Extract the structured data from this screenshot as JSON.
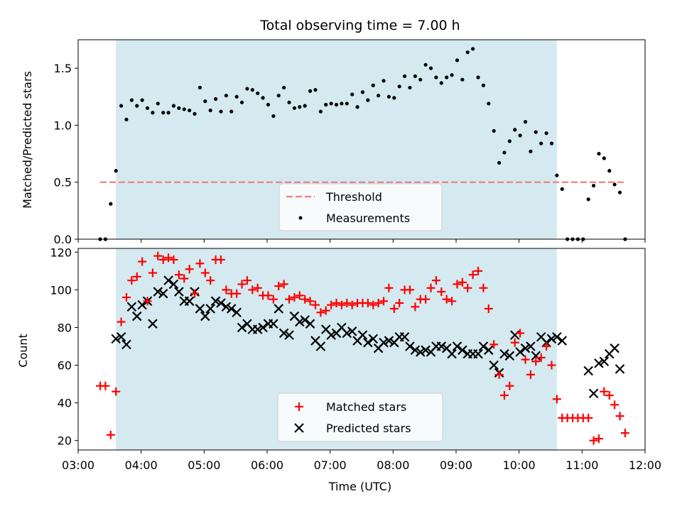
{
  "chart_data": [
    {
      "type": "scatter",
      "title": "Total observing time = 7.00 h",
      "ylabel": "Matched/Predicted stars",
      "xlim": [
        "03:00",
        "12:00"
      ],
      "ylim": [
        0,
        1.75
      ],
      "yticks": [
        "0.0",
        "0.5",
        "1.0",
        "1.5"
      ],
      "observing_window": [
        "03:36",
        "10:36"
      ],
      "threshold": 0.5,
      "legend": [
        "Threshold",
        "Measurements"
      ],
      "legend_loc": "lower center",
      "colors": {
        "threshold": "#f08080",
        "measurements": "#000000",
        "window": "#d4eaf0"
      },
      "series": [
        {
          "name": "Measurements",
          "x": [
            "03:21",
            "03:26",
            "03:31",
            "03:36",
            "03:41",
            "03:46",
            "03:51",
            "03:56",
            "04:01",
            "04:06",
            "04:11",
            "04:16",
            "04:21",
            "04:26",
            "04:31",
            "04:36",
            "04:41",
            "04:46",
            "04:51",
            "04:56",
            "05:01",
            "05:06",
            "05:11",
            "05:16",
            "05:21",
            "05:26",
            "05:31",
            "05:36",
            "05:41",
            "05:46",
            "05:51",
            "05:56",
            "06:01",
            "06:06",
            "06:11",
            "06:16",
            "06:21",
            "06:26",
            "06:31",
            "06:36",
            "06:41",
            "06:46",
            "06:51",
            "06:56",
            "07:01",
            "07:06",
            "07:11",
            "07:16",
            "07:21",
            "07:26",
            "07:31",
            "07:36",
            "07:41",
            "07:46",
            "07:51",
            "07:56",
            "08:01",
            "08:06",
            "08:11",
            "08:16",
            "08:21",
            "08:26",
            "08:31",
            "08:36",
            "08:41",
            "08:46",
            "08:51",
            "08:56",
            "09:01",
            "09:06",
            "09:11",
            "09:16",
            "09:21",
            "09:26",
            "09:31",
            "09:36",
            "09:41",
            "09:46",
            "09:51",
            "09:56",
            "10:01",
            "10:06",
            "10:11",
            "10:16",
            "10:21",
            "10:26",
            "10:31",
            "10:36",
            "10:41",
            "10:46",
            "10:51",
            "10:56",
            "11:01",
            "11:06",
            "11:11",
            "11:16",
            "11:21",
            "11:26",
            "11:31",
            "11:36",
            "11:41"
          ],
          "y": [
            0.0,
            0.0,
            0.31,
            0.6,
            1.17,
            1.05,
            1.22,
            1.17,
            1.22,
            1.15,
            1.11,
            1.19,
            1.11,
            1.11,
            1.17,
            1.15,
            1.14,
            1.13,
            1.1,
            1.33,
            1.21,
            1.13,
            1.23,
            1.12,
            1.26,
            1.12,
            1.25,
            1.2,
            1.32,
            1.31,
            1.28,
            1.24,
            1.18,
            1.08,
            1.26,
            1.33,
            1.2,
            1.15,
            1.16,
            1.17,
            1.3,
            1.31,
            1.12,
            1.18,
            1.19,
            1.18,
            1.19,
            1.19,
            1.27,
            1.16,
            1.29,
            1.22,
            1.35,
            1.26,
            1.39,
            1.25,
            1.24,
            1.34,
            1.43,
            1.33,
            1.43,
            1.4,
            1.53,
            1.5,
            1.42,
            1.37,
            1.42,
            1.44,
            1.57,
            1.4,
            1.64,
            1.67,
            1.42,
            1.35,
            1.19,
            0.95,
            0.67,
            0.76,
            0.86,
            0.96,
            0.91,
            1.03,
            0.77,
            0.94,
            0.84,
            0.93,
            0.84,
            0.56,
            0.44,
            0.0,
            0.0,
            0.0,
            0.0,
            0.35,
            0.47,
            0.75,
            0.71,
            0.6,
            0.48,
            0.41,
            0.0
          ]
        }
      ]
    },
    {
      "type": "scatter",
      "xlabel": "Time (UTC)",
      "ylabel": "Count",
      "xlim": [
        "03:00",
        "12:00"
      ],
      "xticks": [
        "03:00",
        "04:00",
        "05:00",
        "06:00",
        "07:00",
        "08:00",
        "09:00",
        "10:00",
        "11:00",
        "12:00"
      ],
      "ylim": [
        15,
        122
      ],
      "yticks": [
        "20",
        "40",
        "60",
        "80",
        "100",
        "120"
      ],
      "observing_window": [
        "03:36",
        "10:36"
      ],
      "legend": [
        "Matched stars",
        "Predicted stars"
      ],
      "legend_loc": "lower center",
      "colors": {
        "matched": "#ff0000",
        "predicted": "#000000",
        "window": "#d4eaf0"
      },
      "series": [
        {
          "name": "Matched stars",
          "x": [
            "03:21",
            "03:26",
            "03:31",
            "03:36",
            "03:41",
            "03:46",
            "03:51",
            "03:56",
            "04:01",
            "04:06",
            "04:11",
            "04:16",
            "04:21",
            "04:26",
            "04:31",
            "04:36",
            "04:41",
            "04:46",
            "04:51",
            "04:56",
            "05:01",
            "05:06",
            "05:11",
            "05:16",
            "05:21",
            "05:26",
            "05:31",
            "05:36",
            "05:41",
            "05:46",
            "05:51",
            "05:56",
            "06:01",
            "06:06",
            "06:11",
            "06:16",
            "06:21",
            "06:26",
            "06:31",
            "06:36",
            "06:41",
            "06:46",
            "06:51",
            "06:56",
            "07:01",
            "07:06",
            "07:11",
            "07:16",
            "07:21",
            "07:26",
            "07:31",
            "07:36",
            "07:41",
            "07:46",
            "07:51",
            "07:56",
            "08:01",
            "08:06",
            "08:11",
            "08:16",
            "08:21",
            "08:26",
            "08:31",
            "08:36",
            "08:41",
            "08:46",
            "08:51",
            "08:56",
            "09:01",
            "09:06",
            "09:11",
            "09:16",
            "09:21",
            "09:26",
            "09:31",
            "09:36",
            "09:41",
            "09:46",
            "09:51",
            "09:56",
            "10:01",
            "10:06",
            "10:11",
            "10:16",
            "10:21",
            "10:26",
            "10:31",
            "10:36",
            "10:41",
            "10:46",
            "10:51",
            "10:56",
            "11:01",
            "11:06",
            "11:11",
            "11:16",
            "11:21",
            "11:26",
            "11:31",
            "11:36",
            "11:41"
          ],
          "y": [
            49,
            49,
            23,
            46,
            83,
            96,
            105,
            107,
            115,
            94,
            109,
            118,
            116,
            117,
            116,
            108,
            106,
            111,
            98,
            114,
            109,
            105,
            116,
            116,
            100,
            98,
            98,
            103,
            105,
            100,
            101,
            97,
            97,
            95,
            102,
            103,
            95,
            96,
            97,
            95,
            94,
            92,
            88,
            89,
            92,
            93,
            92,
            93,
            92,
            93,
            93,
            93,
            92,
            93,
            94,
            101,
            90,
            93,
            100,
            100,
            91,
            95,
            95,
            101,
            105,
            99,
            95,
            94,
            103,
            104,
            101,
            108,
            110,
            101,
            90,
            71,
            55,
            44,
            49,
            72,
            77,
            63,
            55,
            62,
            64,
            70,
            60,
            42,
            32,
            32,
            32,
            32,
            32,
            32,
            20,
            21,
            46,
            44,
            39,
            33,
            24
          ]
        },
        {
          "name": "Predicted stars",
          "x": [
            "03:36",
            "03:41",
            "03:46",
            "03:51",
            "03:56",
            "04:01",
            "04:06",
            "04:11",
            "04:16",
            "04:21",
            "04:26",
            "04:31",
            "04:36",
            "04:41",
            "04:46",
            "04:51",
            "04:56",
            "05:01",
            "05:06",
            "05:11",
            "05:16",
            "05:21",
            "05:26",
            "05:31",
            "05:36",
            "05:41",
            "05:46",
            "05:51",
            "05:56",
            "06:01",
            "06:06",
            "06:11",
            "06:16",
            "06:21",
            "06:26",
            "06:31",
            "06:36",
            "06:41",
            "06:46",
            "06:51",
            "06:56",
            "07:01",
            "07:06",
            "07:11",
            "07:16",
            "07:21",
            "07:26",
            "07:31",
            "07:36",
            "07:41",
            "07:46",
            "07:51",
            "07:56",
            "08:01",
            "08:06",
            "08:11",
            "08:16",
            "08:21",
            "08:26",
            "08:31",
            "08:36",
            "08:41",
            "08:46",
            "08:51",
            "08:56",
            "09:01",
            "09:06",
            "09:11",
            "09:16",
            "09:21",
            "09:26",
            "09:31",
            "09:36",
            "09:41",
            "09:46",
            "09:51",
            "09:56",
            "10:01",
            "10:06",
            "10:11",
            "10:16",
            "10:21",
            "10:26",
            "10:31",
            "10:36",
            "10:41",
            "11:06",
            "11:11",
            "11:16",
            "11:21",
            "11:26",
            "11:31",
            "11:36"
          ],
          "y": [
            74,
            75,
            71,
            91,
            86,
            92,
            94,
            82,
            99,
            98,
            105,
            103,
            99,
            94,
            94,
            99,
            90,
            86,
            90,
            94,
            93,
            91,
            90,
            88,
            80,
            82,
            79,
            79,
            80,
            82,
            82,
            90,
            77,
            76,
            86,
            83,
            84,
            82,
            73,
            70,
            79,
            76,
            77,
            80,
            77,
            78,
            73,
            76,
            72,
            74,
            69,
            72,
            73,
            72,
            75,
            75,
            70,
            68,
            67,
            68,
            67,
            70,
            70,
            69,
            66,
            70,
            68,
            66,
            66,
            66,
            70,
            68,
            60,
            56,
            66,
            65,
            76,
            67,
            69,
            70,
            65,
            75,
            72,
            74,
            75,
            73,
            57,
            45,
            61,
            62,
            66,
            69,
            58
          ]
        }
      ]
    }
  ]
}
